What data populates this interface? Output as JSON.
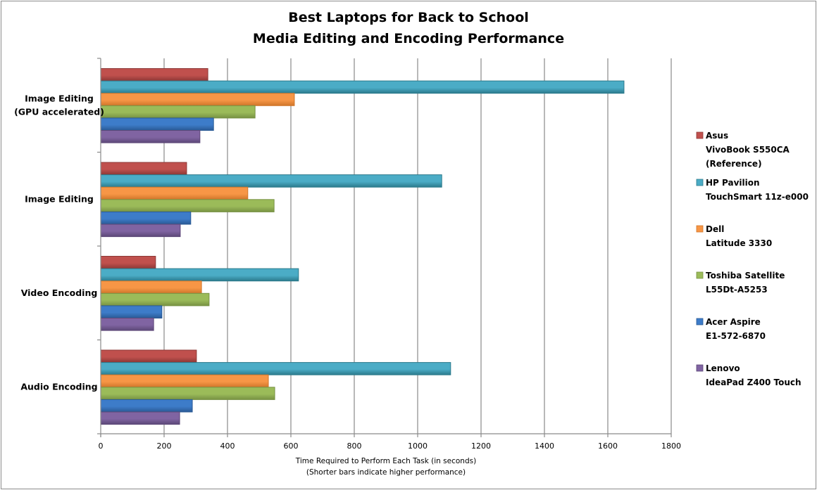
{
  "chart_data": {
    "type": "bar",
    "orientation": "horizontal",
    "title": [
      "Best Laptops for Back to School",
      "Media Editing and Encoding Performance"
    ],
    "xlabel": [
      "Time Required to Perform Each Task  (in seconds)",
      "(Shorter bars indicate  higher performance)"
    ],
    "ylabel": "",
    "xlim": [
      0,
      1800
    ],
    "xticks": [
      0,
      200,
      400,
      600,
      800,
      1000,
      1200,
      1400,
      1600,
      1800
    ],
    "grid": true,
    "legend_position": "right",
    "categories": [
      [
        "Image Editing",
        "(GPU accelerated)"
      ],
      [
        "Image Editing"
      ],
      [
        "Video Encoding"
      ],
      [
        "Audio Encoding"
      ]
    ],
    "series": [
      {
        "name": [
          "Asus",
          "VivoBook S550CA",
          "(Reference)"
        ],
        "color": "#c0504d",
        "edge": "#8c3836",
        "values": [
          338,
          271,
          173,
          302
        ]
      },
      {
        "name": [
          "HP Pavilion",
          "TouchSmart 11z-e000"
        ],
        "color": "#4bacc6",
        "edge": "#2c7a8c",
        "values": [
          1651,
          1076,
          624,
          1104
        ]
      },
      {
        "name": [
          "Dell",
          "Latitude 3330"
        ],
        "color": "#f79646",
        "edge": "#d0762a",
        "values": [
          611,
          464,
          318,
          529
        ]
      },
      {
        "name": [
          "Toshiba Satellite",
          "L55Dt-A5253"
        ],
        "color": "#9bbb59",
        "edge": "#779243",
        "values": [
          487,
          547,
          342,
          549
        ]
      },
      {
        "name": [
          "Acer Aspire",
          "E1-572-6870"
        ],
        "color": "#3d7cc9",
        "edge": "#2a5a95",
        "values": [
          356,
          284,
          193,
          289
        ]
      },
      {
        "name": [
          "Lenovo",
          "IdeaPad Z400 Touch"
        ],
        "color": "#8064a2",
        "edge": "#5d4878",
        "values": [
          313,
          251,
          167,
          249
        ]
      }
    ]
  }
}
